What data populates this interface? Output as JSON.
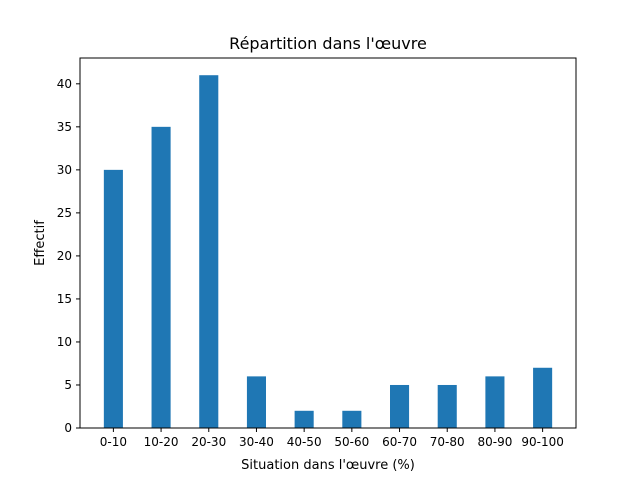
{
  "chart_data": {
    "type": "bar",
    "title": "Répartition dans l'œuvre",
    "xlabel": "Situation dans l'œuvre (%)",
    "ylabel": "Effectif",
    "categories": [
      "0-10",
      "10-20",
      "20-30",
      "30-40",
      "40-50",
      "50-60",
      "60-70",
      "70-80",
      "80-90",
      "90-100"
    ],
    "values": [
      30,
      35,
      41,
      6,
      2,
      2,
      5,
      5,
      6,
      7
    ],
    "ylim": [
      0,
      43
    ],
    "yticks": [
      0,
      5,
      10,
      15,
      20,
      25,
      30,
      35,
      40
    ],
    "grid": false,
    "legend": "none",
    "bar_color": "#1f77b4"
  }
}
